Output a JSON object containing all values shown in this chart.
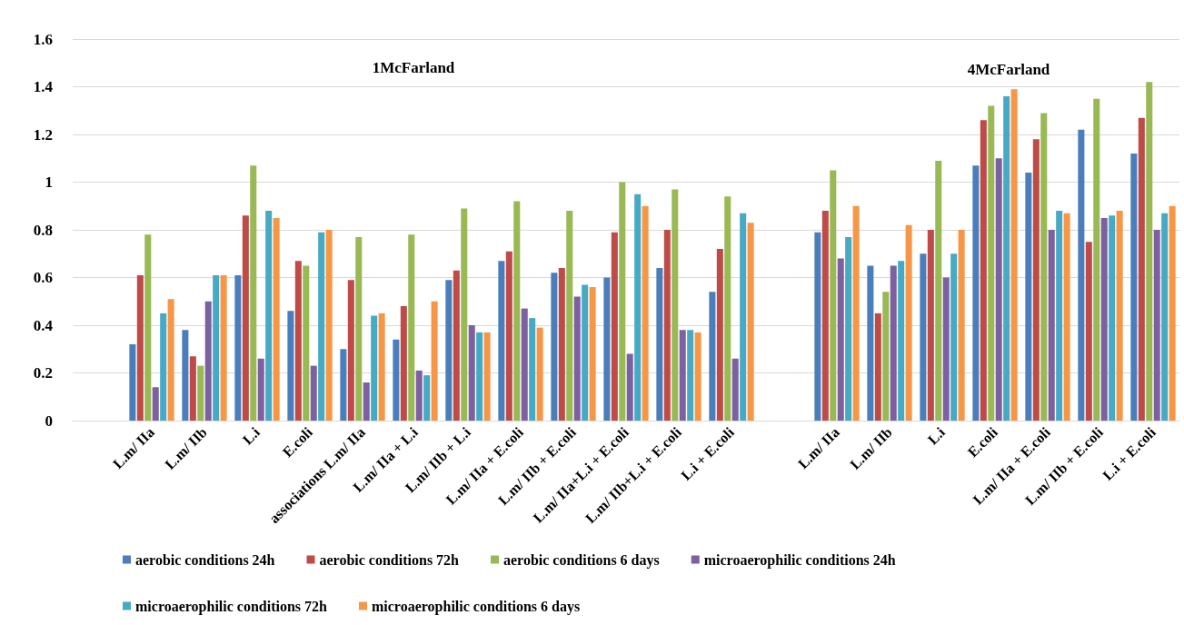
{
  "chart_data": {
    "type": "bar",
    "annotations": [
      "1McFarland",
      "4McFarland"
    ],
    "categories": [
      null,
      "L.m/ IIa",
      "L.m/ IIb",
      "L.i",
      "E.coli",
      "associations L.m/ IIa",
      "L.m/ IIa + L.i",
      "L.m/ IIb + L.i",
      "L.m/ IIa + E.coli",
      "L.m/ IIb + E.coli",
      "L.m/ IIa+L.i + E.coli",
      "L.m/ IIb+L.i + E.coli",
      "L.i + E.coli",
      null,
      "L.m/ IIa",
      "L.m/ IIb",
      "L.i",
      "E.coli",
      "L.m/ IIa + E.coli",
      "L.m/ IIb + E.coli",
      "L.i + E.coli"
    ],
    "series": [
      {
        "name": "aerobic conditions 24h",
        "color": "#4a7ebb",
        "values": [
          null,
          0.32,
          0.38,
          0.61,
          0.46,
          0.3,
          0.34,
          0.59,
          0.67,
          0.62,
          0.6,
          0.64,
          0.54,
          null,
          0.79,
          0.65,
          0.7,
          1.07,
          1.04,
          1.22,
          1.12
        ]
      },
      {
        "name": "aerobic conditions 72h",
        "color": "#be4b48",
        "values": [
          null,
          0.61,
          0.27,
          0.86,
          0.67,
          0.59,
          0.48,
          0.63,
          0.71,
          0.64,
          0.79,
          0.8,
          0.72,
          null,
          0.88,
          0.45,
          0.8,
          1.26,
          1.18,
          0.75,
          1.27
        ]
      },
      {
        "name": "aerobic conditions 6 days",
        "color": "#98b954",
        "values": [
          null,
          0.78,
          0.23,
          1.07,
          0.65,
          0.77,
          0.78,
          0.89,
          0.92,
          0.88,
          1.0,
          0.97,
          0.94,
          null,
          1.05,
          0.54,
          1.09,
          1.32,
          1.29,
          1.35,
          1.42
        ]
      },
      {
        "name": "microaerophilic conditions 24h",
        "color": "#7d60a0",
        "values": [
          null,
          0.14,
          0.5,
          0.26,
          0.23,
          0.16,
          0.21,
          0.4,
          0.47,
          0.52,
          0.28,
          0.38,
          0.26,
          null,
          0.68,
          0.65,
          0.6,
          1.1,
          0.8,
          0.85,
          0.8
        ]
      },
      {
        "name": "microaerophilic conditions 72h",
        "color": "#46aac5",
        "values": [
          null,
          0.45,
          0.61,
          0.88,
          0.79,
          0.44,
          0.19,
          0.37,
          0.43,
          0.57,
          0.95,
          0.38,
          0.87,
          null,
          0.77,
          0.67,
          0.7,
          1.36,
          0.88,
          0.86,
          0.87
        ]
      },
      {
        "name": "microaerophilic conditions 6 days",
        "color": "#f79646",
        "values": [
          null,
          0.51,
          0.61,
          0.85,
          0.8,
          0.45,
          0.5,
          0.37,
          0.39,
          0.56,
          0.9,
          0.37,
          0.83,
          null,
          0.9,
          0.82,
          0.8,
          1.39,
          0.87,
          0.88,
          0.9
        ]
      }
    ],
    "ylim": [
      0,
      1.6
    ],
    "yticks": [
      0,
      0.2,
      0.4,
      0.6,
      0.8,
      1,
      1.2,
      1.4,
      1.6
    ],
    "grid": "y",
    "legend": "bottom"
  }
}
